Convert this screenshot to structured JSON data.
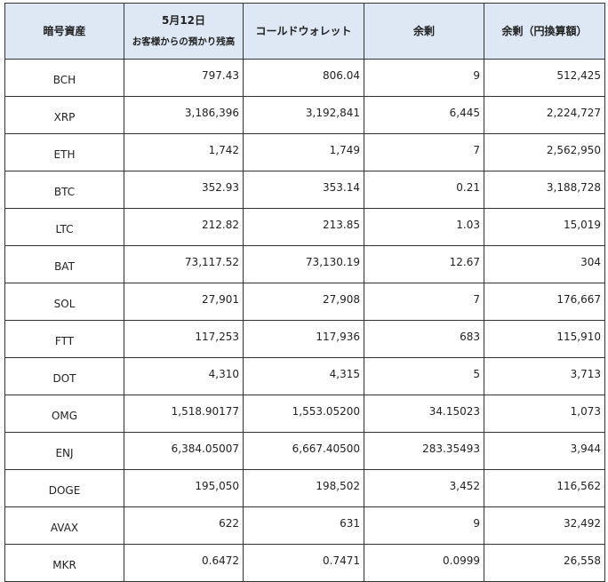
{
  "headers": {
    "asset": "暗号資産",
    "custody_main": "5月12日",
    "custody_sub": "お客様からの預かり残高",
    "cold_wallet": "コールドウォレット",
    "surplus": "余剰",
    "surplus_jpy": "余剰（円換算額）"
  },
  "rows": [
    {
      "asset": "BCH",
      "custody": "797.43",
      "cold": "806.04",
      "surplus": "9",
      "jpy": "512,425"
    },
    {
      "asset": "XRP",
      "custody": "3,186,396",
      "cold": "3,192,841",
      "surplus": "6,445",
      "jpy": "2,224,727"
    },
    {
      "asset": "ETH",
      "custody": "1,742",
      "cold": "1,749",
      "surplus": "7",
      "jpy": "2,562,950"
    },
    {
      "asset": "BTC",
      "custody": "352.93",
      "cold": "353.14",
      "surplus": "0.21",
      "jpy": "3,188,728"
    },
    {
      "asset": "LTC",
      "custody": "212.82",
      "cold": "213.85",
      "surplus": "1.03",
      "jpy": "15,019"
    },
    {
      "asset": "BAT",
      "custody": "73,117.52",
      "cold": "73,130.19",
      "surplus": "12.67",
      "jpy": "304"
    },
    {
      "asset": "SOL",
      "custody": "27,901",
      "cold": "27,908",
      "surplus": "7",
      "jpy": "176,667"
    },
    {
      "asset": "FTT",
      "custody": "117,253",
      "cold": "117,936",
      "surplus": "683",
      "jpy": "115,910"
    },
    {
      "asset": "DOT",
      "custody": "4,310",
      "cold": "4,315",
      "surplus": "5",
      "jpy": "3,713"
    },
    {
      "asset": "OMG",
      "custody": "1,518.90177",
      "cold": "1,553.05200",
      "surplus": "34.15023",
      "jpy": "1,073"
    },
    {
      "asset": "ENJ",
      "custody": "6,384.05007",
      "cold": "6,667.40500",
      "surplus": "283.35493",
      "jpy": "3,944"
    },
    {
      "asset": "DOGE",
      "custody": "195,050",
      "cold": "198,502",
      "surplus": "3,452",
      "jpy": "116,562"
    },
    {
      "asset": "AVAX",
      "custody": "622",
      "cold": "631",
      "surplus": "9",
      "jpy": "32,492"
    },
    {
      "asset": "MKR",
      "custody": "0.6472",
      "cold": "0.7471",
      "surplus": "0.0999",
      "jpy": "26,558"
    }
  ]
}
